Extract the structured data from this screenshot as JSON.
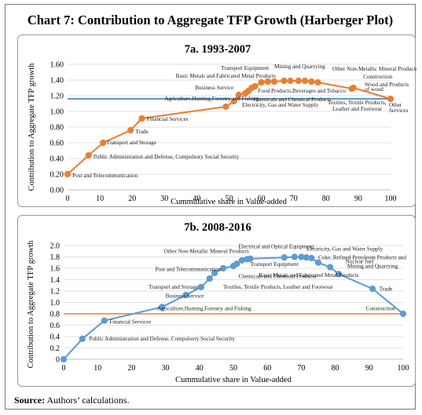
{
  "figure_title": "Chart 7: Contribution to Aggregate TFP Growth (Harberger Plot)",
  "source": {
    "label": "Source:",
    "text": "Authors’ calculations."
  },
  "chart_data": [
    {
      "type": "line",
      "title": "7a. 1993-2007",
      "xlabel": "Cummulative share in Value-added",
      "ylabel": "Contribution to Aggregate TFP growth",
      "xlim": [
        0,
        100
      ],
      "ylim": [
        0,
        1.6
      ],
      "xticks": [
        0,
        10,
        20,
        30,
        40,
        50,
        60,
        70,
        80,
        90,
        100
      ],
      "yticks": [
        "0.00",
        "0.20",
        "0.40",
        "0.60",
        "0.80",
        "1.00",
        "1.20",
        "1.40",
        "1.60"
      ],
      "series_color": "#ed7d31",
      "reference_line": {
        "y": 1.16,
        "color": "#2e75b6"
      },
      "points": [
        {
          "x": 0,
          "y": 0.2
        },
        {
          "x": 6.5,
          "y": 0.44
        },
        {
          "x": 11,
          "y": 0.6
        },
        {
          "x": 19.5,
          "y": 0.76
        },
        {
          "x": 23,
          "y": 0.91
        },
        {
          "x": 49,
          "y": 1.06
        },
        {
          "x": 51.5,
          "y": 1.13
        },
        {
          "x": 53,
          "y": 1.21
        },
        {
          "x": 55,
          "y": 1.23
        },
        {
          "x": 56,
          "y": 1.26
        },
        {
          "x": 57,
          "y": 1.3
        },
        {
          "x": 58,
          "y": 1.32
        },
        {
          "x": 60,
          "y": 1.37
        },
        {
          "x": 62,
          "y": 1.38
        },
        {
          "x": 64,
          "y": 1.38
        },
        {
          "x": 67,
          "y": 1.39
        },
        {
          "x": 69,
          "y": 1.39
        },
        {
          "x": 71.5,
          "y": 1.39
        },
        {
          "x": 73.5,
          "y": 1.39
        },
        {
          "x": 75.5,
          "y": 1.38
        },
        {
          "x": 77.5,
          "y": 1.37
        },
        {
          "x": 88,
          "y": 1.29
        },
        {
          "x": 88.5,
          "y": 1.3
        },
        {
          "x": 100,
          "y": 1.16
        }
      ],
      "annotations": [
        {
          "text": "Post and Telecommunication",
          "x": 1.5,
          "y": 0.16
        },
        {
          "text": "Public Administration and Defense, Compulsory Social Security",
          "x": 8,
          "y": 0.4
        },
        {
          "text": "Transport and Storage",
          "x": 12,
          "y": 0.58
        },
        {
          "text": "Trade",
          "x": 21,
          "y": 0.72
        },
        {
          "text": "Financial Services",
          "x": 24.5,
          "y": 0.88
        },
        {
          "text": "Agriculture,Hunting,Forestry and Fishing",
          "x": 30,
          "y": 1.14
        },
        {
          "text": "Electricity, Gas and Water Supply",
          "x": 54,
          "y": 1.06
        },
        {
          "text": "Chemicals and Chemical Products",
          "x": 57.5,
          "y": 1.13
        },
        {
          "text": "Business Service",
          "x": 39.5,
          "y": 1.28
        },
        {
          "text": "Basic Metals and Fabricated Metal Products",
          "x": 33.5,
          "y": 1.43
        },
        {
          "text": "Transport Equipment",
          "x": 47.5,
          "y": 1.53
        },
        {
          "text": "Mining and Quarrying",
          "x": 64,
          "y": 1.55
        },
        {
          "text": "Other Non-Metallic Mineral Products",
          "x": 82,
          "y": 1.52
        },
        {
          "text": "Food Products,Beverages and Tobacco",
          "x": 59,
          "y": 1.24
        },
        {
          "text": "Construction",
          "x": 91.5,
          "y": 1.42
        },
        {
          "text": "Wood and Products",
          "x": 92,
          "y": 1.32
        },
        {
          "text": "of wood",
          "x": 92,
          "y": 1.26
        },
        {
          "text": "Textiles, Textile Products,",
          "x": 80.5,
          "y": 1.09
        },
        {
          "text": "Leather and Footwear",
          "x": 82,
          "y": 1.01
        },
        {
          "text": "Other",
          "x": 99.5,
          "y": 1.06
        },
        {
          "text": "Services",
          "x": 99.5,
          "y": 0.99
        }
      ]
    },
    {
      "type": "line",
      "title": "7b. 2008-2016",
      "xlabel": "Cummulative share in Value-added",
      "ylabel": "Contribution to Aggregate TFP growth",
      "xlim": [
        0,
        100
      ],
      "ylim": [
        0,
        2.0
      ],
      "xticks": [
        0,
        10,
        20,
        30,
        40,
        50,
        60,
        70,
        80,
        90,
        100
      ],
      "yticks": [
        "0",
        "0.2",
        "0.4",
        "0.6",
        "0.8",
        "1.0",
        "1.2",
        "1.4",
        "1.6",
        "1.8",
        "2.0"
      ],
      "series_color": "#5b9bd5",
      "reference_line": {
        "y": 0.8,
        "color": "#ed7d31"
      },
      "points": [
        {
          "x": 0,
          "y": 0.0
        },
        {
          "x": 5.5,
          "y": 0.36
        },
        {
          "x": 12,
          "y": 0.68
        },
        {
          "x": 29,
          "y": 0.92
        },
        {
          "x": 36,
          "y": 1.13
        },
        {
          "x": 40.5,
          "y": 1.27
        },
        {
          "x": 43,
          "y": 1.42
        },
        {
          "x": 44.5,
          "y": 1.52
        },
        {
          "x": 47,
          "y": 1.6
        },
        {
          "x": 50,
          "y": 1.64
        },
        {
          "x": 51,
          "y": 1.68
        },
        {
          "x": 52.5,
          "y": 1.74
        },
        {
          "x": 54,
          "y": 1.76
        },
        {
          "x": 55,
          "y": 1.77
        },
        {
          "x": 65,
          "y": 1.79
        },
        {
          "x": 68,
          "y": 1.8
        },
        {
          "x": 70,
          "y": 1.8
        },
        {
          "x": 71.5,
          "y": 1.79
        },
        {
          "x": 73,
          "y": 1.78
        },
        {
          "x": 75,
          "y": 1.7
        },
        {
          "x": 78.5,
          "y": 1.62
        },
        {
          "x": 81,
          "y": 1.5
        },
        {
          "x": 91,
          "y": 1.24
        },
        {
          "x": 100,
          "y": 0.8
        }
      ],
      "annotations": [
        {
          "text": "Public Administration and Defense, Compulsory Social Security",
          "x": 7.5,
          "y": 0.33
        },
        {
          "text": "Financial Services",
          "x": 13.5,
          "y": 0.63
        },
        {
          "text": "Agriculture,Hunting,Forestry and Fishing",
          "x": 27.5,
          "y": 0.86
        },
        {
          "text": "Business Service",
          "x": 30,
          "y": 1.08
        },
        {
          "text": "Transport and Storage",
          "x": 25,
          "y": 1.24
        },
        {
          "text": "Post and Telecommunication",
          "x": 27,
          "y": 1.55
        },
        {
          "text": "Textiles, Textile Products, Leather and Footwear",
          "x": 47,
          "y": 1.24
        },
        {
          "text": "Chemicals and Chemical Products",
          "x": 51.5,
          "y": 1.43
        },
        {
          "text": "Transport Equipment",
          "x": 55,
          "y": 1.64
        },
        {
          "text": "Other Non-Metallic Mineral Products",
          "x": 29.5,
          "y": 1.87
        },
        {
          "text": "Electrical and Optical Equipment",
          "x": 51.5,
          "y": 1.95
        },
        {
          "text": "Electricity, Gas and Water Supply",
          "x": 71.5,
          "y": 1.91
        },
        {
          "text": "Coke, Refined Petroleum Products and",
          "x": 75,
          "y": 1.76
        },
        {
          "text": "Nuclear fuel",
          "x": 83,
          "y": 1.69
        },
        {
          "text": "Mining and Quarrying",
          "x": 83.5,
          "y": 1.61
        },
        {
          "text": "Basic Metals and Fabricated Metal Products",
          "x": 57.5,
          "y": 1.45
        },
        {
          "text": "Trade",
          "x": 93,
          "y": 1.21
        },
        {
          "text": "Construction",
          "x": 89,
          "y": 0.86
        }
      ]
    }
  ]
}
